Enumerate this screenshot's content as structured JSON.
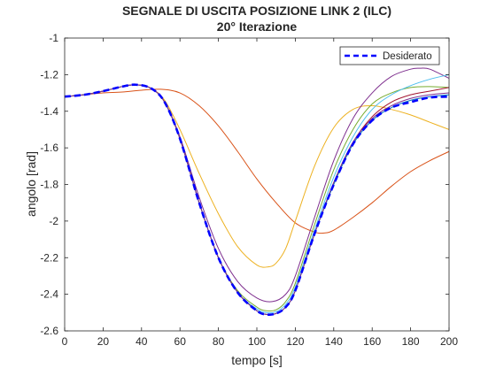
{
  "chart_data": {
    "type": "line",
    "title": "SEGNALE DI USCITA POSIZIONE LINK 2 (ILC)",
    "subtitle": "20° Iterazione",
    "xlabel": "tempo [s]",
    "ylabel": "angolo [rad]",
    "xlim": [
      0,
      200
    ],
    "ylim": [
      -2.6,
      -1
    ],
    "xticks": [
      0,
      20,
      40,
      60,
      80,
      100,
      120,
      140,
      160,
      180,
      200
    ],
    "yticks": [
      -2.6,
      -2.4,
      -2.2,
      -2,
      -1.8,
      -1.6,
      -1.4,
      -1.2,
      -1
    ],
    "grid": false,
    "legend": {
      "position": "top-right",
      "entries": [
        "Desiderato"
      ]
    },
    "series": [
      {
        "name": "Desiderato",
        "color": "#0000FF",
        "style": "dashed",
        "width": 2.6,
        "x": [
          0,
          10,
          20,
          30,
          37,
          45,
          52,
          60,
          70,
          80,
          90,
          100,
          105,
          110,
          115,
          120,
          130,
          140,
          150,
          160,
          170,
          180,
          190,
          200
        ],
        "y": [
          -1.32,
          -1.31,
          -1.29,
          -1.265,
          -1.255,
          -1.275,
          -1.35,
          -1.55,
          -1.9,
          -2.2,
          -2.39,
          -2.49,
          -2.51,
          -2.505,
          -2.47,
          -2.38,
          -2.07,
          -1.8,
          -1.58,
          -1.45,
          -1.38,
          -1.35,
          -1.325,
          -1.32
        ]
      },
      {
        "color": "#D95319",
        "width": 1,
        "x": [
          0,
          10,
          20,
          30,
          40,
          50,
          60,
          70,
          80,
          90,
          100,
          110,
          120,
          130,
          135,
          140,
          150,
          160,
          170,
          180,
          190,
          200
        ],
        "y": [
          -1.32,
          -1.31,
          -1.3,
          -1.295,
          -1.285,
          -1.28,
          -1.3,
          -1.37,
          -1.48,
          -1.62,
          -1.77,
          -1.9,
          -2.01,
          -2.06,
          -2.065,
          -2.05,
          -1.98,
          -1.9,
          -1.81,
          -1.73,
          -1.67,
          -1.62
        ]
      },
      {
        "color": "#EDB120",
        "width": 1,
        "x": [
          0,
          10,
          20,
          30,
          37,
          45,
          52,
          60,
          70,
          80,
          90,
          100,
          106,
          110,
          115,
          120,
          130,
          140,
          150,
          160,
          170,
          180,
          190,
          200
        ],
        "y": [
          -1.32,
          -1.31,
          -1.29,
          -1.265,
          -1.255,
          -1.275,
          -1.34,
          -1.5,
          -1.74,
          -1.96,
          -2.14,
          -2.24,
          -2.25,
          -2.23,
          -2.15,
          -2.0,
          -1.7,
          -1.49,
          -1.39,
          -1.37,
          -1.39,
          -1.42,
          -1.46,
          -1.5
        ]
      },
      {
        "color": "#7E2F8E",
        "width": 1,
        "x": [
          0,
          10,
          20,
          30,
          37,
          45,
          52,
          60,
          70,
          80,
          90,
          100,
          108,
          115,
          120,
          130,
          140,
          150,
          160,
          170,
          180,
          185,
          190,
          200
        ],
        "y": [
          -1.32,
          -1.31,
          -1.29,
          -1.265,
          -1.255,
          -1.275,
          -1.35,
          -1.54,
          -1.87,
          -2.15,
          -2.33,
          -2.42,
          -2.44,
          -2.4,
          -2.3,
          -1.98,
          -1.67,
          -1.44,
          -1.3,
          -1.21,
          -1.17,
          -1.165,
          -1.17,
          -1.22
        ]
      },
      {
        "color": "#77AC30",
        "width": 1,
        "x": [
          0,
          10,
          20,
          30,
          37,
          45,
          52,
          60,
          70,
          80,
          90,
          100,
          105,
          110,
          115,
          120,
          130,
          140,
          150,
          160,
          170,
          180,
          190,
          200
        ],
        "y": [
          -1.32,
          -1.31,
          -1.29,
          -1.265,
          -1.255,
          -1.275,
          -1.35,
          -1.55,
          -1.9,
          -2.2,
          -2.38,
          -2.47,
          -2.49,
          -2.485,
          -2.44,
          -2.34,
          -2.02,
          -1.72,
          -1.5,
          -1.36,
          -1.3,
          -1.27,
          -1.265,
          -1.27
        ]
      },
      {
        "color": "#4DBEEE",
        "width": 1,
        "x": [
          0,
          10,
          20,
          30,
          37,
          45,
          52,
          60,
          70,
          80,
          90,
          100,
          105,
          110,
          115,
          120,
          130,
          140,
          150,
          160,
          170,
          180,
          190,
          200
        ],
        "y": [
          -1.32,
          -1.31,
          -1.29,
          -1.265,
          -1.255,
          -1.275,
          -1.35,
          -1.55,
          -1.9,
          -2.2,
          -2.39,
          -2.48,
          -2.5,
          -2.495,
          -2.455,
          -2.36,
          -2.05,
          -1.76,
          -1.54,
          -1.39,
          -1.31,
          -1.26,
          -1.225,
          -1.2
        ]
      },
      {
        "color": "#A2142F",
        "width": 1,
        "x": [
          0,
          10,
          20,
          30,
          37,
          45,
          52,
          60,
          70,
          80,
          90,
          100,
          105,
          110,
          115,
          120,
          130,
          140,
          150,
          160,
          170,
          180,
          190,
          200
        ],
        "y": [
          -1.32,
          -1.31,
          -1.29,
          -1.265,
          -1.255,
          -1.275,
          -1.35,
          -1.55,
          -1.9,
          -2.2,
          -2.39,
          -2.49,
          -2.51,
          -2.505,
          -2.47,
          -2.38,
          -2.07,
          -1.79,
          -1.57,
          -1.43,
          -1.35,
          -1.31,
          -1.29,
          -1.27
        ]
      },
      {
        "color": "#0072BD",
        "width": 1,
        "x": [
          0,
          10,
          20,
          30,
          37,
          45,
          52,
          60,
          70,
          80,
          90,
          100,
          105,
          110,
          115,
          120,
          130,
          140,
          150,
          160,
          170,
          180,
          190,
          200
        ],
        "y": [
          -1.32,
          -1.31,
          -1.29,
          -1.265,
          -1.255,
          -1.275,
          -1.35,
          -1.55,
          -1.9,
          -2.2,
          -2.39,
          -2.49,
          -2.51,
          -2.505,
          -2.47,
          -2.38,
          -2.07,
          -1.8,
          -1.58,
          -1.45,
          -1.38,
          -1.34,
          -1.32,
          -1.31
        ]
      },
      {
        "color": "#7E2F8E",
        "width": 1,
        "x": [
          0,
          10,
          20,
          30,
          37,
          45,
          52,
          60,
          70,
          80,
          90,
          100,
          105,
          110,
          115,
          120,
          130,
          140,
          150,
          160,
          170,
          180,
          190,
          200
        ],
        "y": [
          -1.32,
          -1.31,
          -1.29,
          -1.265,
          -1.255,
          -1.275,
          -1.35,
          -1.55,
          -1.9,
          -2.2,
          -2.39,
          -2.49,
          -2.51,
          -2.505,
          -2.47,
          -2.38,
          -2.07,
          -1.79,
          -1.57,
          -1.44,
          -1.37,
          -1.33,
          -1.31,
          -1.3
        ]
      }
    ]
  }
}
